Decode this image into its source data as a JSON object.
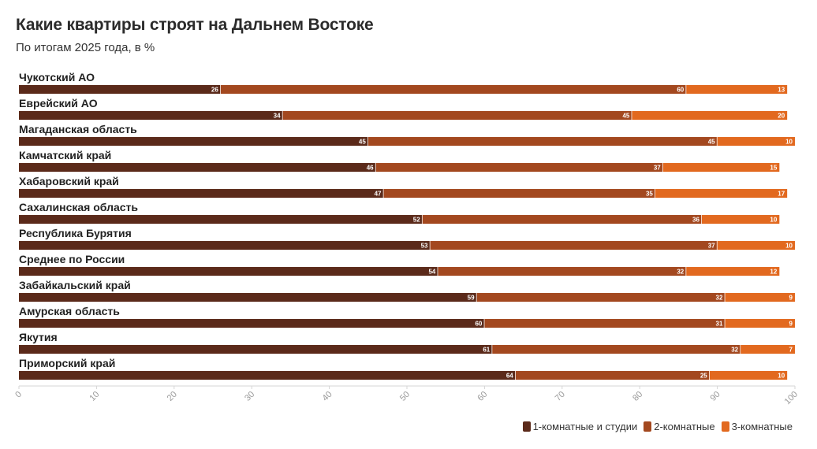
{
  "header": {
    "title": "Какие квартиры строят на Дальнем Востоке",
    "subtitle": "По итогам 2025 года, в %"
  },
  "colors": {
    "one_room": "#5b2a1a",
    "two_room": "#a3481f",
    "three_room": "#e2691f",
    "axis": "#d5d5d5",
    "tick_text": "#9a9a9a"
  },
  "legend": [
    {
      "label": "1-комнатные и студии",
      "color": "#5b2a1a"
    },
    {
      "label": "2-комнатные",
      "color": "#a3481f"
    },
    {
      "label": "3-комнатные",
      "color": "#e2691f"
    }
  ],
  "chart_data": {
    "type": "bar",
    "orientation": "horizontal",
    "stacked": true,
    "title": "Какие квартиры строят на Дальнем Востоке",
    "subtitle": "По итогам 2025 года, в %",
    "categories": [
      "Чукотский АО",
      "Еврейский АО",
      "Магаданская область",
      "Камчатский край",
      "Хабаровский край",
      "Сахалинская область",
      "Республика Бурятия",
      "Среднее по России",
      "Забайкальский край",
      "Амурская область",
      "Якутия",
      "Приморский край"
    ],
    "series": [
      {
        "name": "1-комнатные и студии",
        "values": [
          26,
          34,
          45,
          46,
          47,
          52,
          53,
          54,
          59,
          60,
          61,
          64
        ]
      },
      {
        "name": "2-комнатные",
        "values": [
          60,
          45,
          45,
          37,
          35,
          36,
          37,
          32,
          32,
          31,
          32,
          25
        ]
      },
      {
        "name": "3-комнатные",
        "values": [
          13,
          20,
          10,
          15,
          17,
          10,
          10,
          12,
          9,
          9,
          7,
          10
        ]
      }
    ],
    "xlim": [
      0,
      100
    ],
    "xticks": [
      0,
      10,
      20,
      30,
      40,
      50,
      60,
      70,
      80,
      90,
      100
    ],
    "xlabel": "",
    "ylabel": "",
    "legend_position": "bottom-right",
    "grid": false
  }
}
